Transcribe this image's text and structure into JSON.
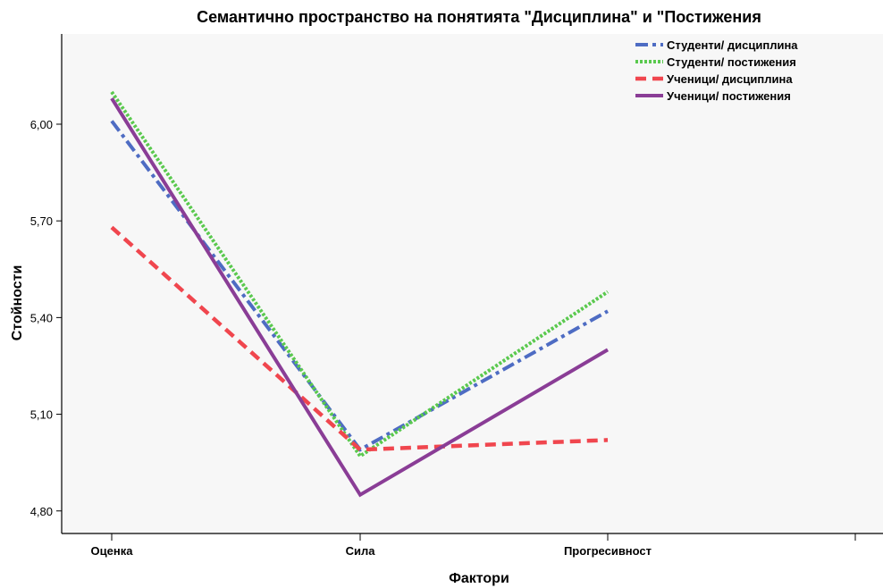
{
  "chart_data": {
    "type": "line",
    "title": "Семантично пространство на понятията \"Дисциплина\" и \"Постижения",
    "xlabel": "Фактори",
    "ylabel": "Стойности",
    "categories": [
      "Оценка",
      "Сила",
      "Прогресивност"
    ],
    "ylim": [
      4.73,
      6.28
    ],
    "yticks": [
      "6,00",
      "5,70",
      "5,40",
      "5,10",
      "4,80"
    ],
    "ytick_values": [
      6.0,
      5.7,
      5.4,
      5.1,
      4.8
    ],
    "grid": false,
    "legend_position": "top-right",
    "series": [
      {
        "name": "Студенти/ дисциплина",
        "values": [
          6.01,
          4.99,
          5.42
        ],
        "color": "#4e6cc3",
        "style": "dashdot"
      },
      {
        "name": "Студенти/ постижения",
        "values": [
          6.1,
          4.97,
          5.48
        ],
        "color": "#5ac94e",
        "style": "dotted"
      },
      {
        "name": "Ученици/ дисциплина",
        "values": [
          5.68,
          4.99,
          5.02
        ],
        "color": "#f0464e",
        "style": "dashed"
      },
      {
        "name": "Ученици/ постижения",
        "values": [
          6.08,
          4.85,
          5.3
        ],
        "color": "#8a3d96",
        "style": "solid"
      }
    ],
    "background_color": "#f7f7f7"
  }
}
